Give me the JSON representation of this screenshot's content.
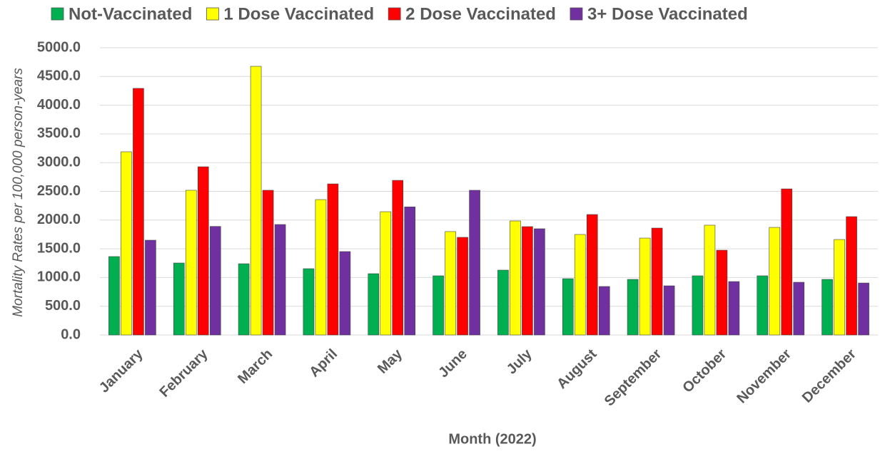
{
  "chart_data": {
    "type": "bar",
    "x_label": "Month (2022)",
    "y_label": "Mortality Rates per 100,000 person-years",
    "categories": [
      "January",
      "February",
      "March",
      "April",
      "May",
      "June",
      "July",
      "August",
      "September",
      "October",
      "November",
      "December"
    ],
    "series": [
      {
        "name": "Not-Vaccinated",
        "color": "#00b050",
        "values": [
          1365,
          1253,
          1240,
          1154,
          1067,
          1030,
          1129,
          980,
          968,
          1030,
          1030,
          968
        ]
      },
      {
        "name": "1 Dose Vaccinated",
        "color": "#ffff00",
        "values": [
          3189,
          2519,
          4677,
          2357,
          2146,
          1800,
          1985,
          1750,
          1687,
          1911,
          1873,
          1662
        ]
      },
      {
        "name": "2 Dose Vaccinated",
        "color": "#ff0000",
        "values": [
          4293,
          2928,
          2519,
          2630,
          2692,
          1700,
          1886,
          2097,
          1861,
          1476,
          2543,
          2060
        ]
      },
      {
        "name": "3+ Dose Vaccinated",
        "color": "#7030a0",
        "values": [
          1650,
          1890,
          1923,
          1452,
          2230,
          2519,
          1849,
          844,
          856,
          930,
          918,
          905
        ]
      }
    ],
    "ylim": [
      0,
      5000
    ],
    "yticks": [
      {
        "value": 0,
        "label": "0.0"
      },
      {
        "value": 500,
        "label": "500.0"
      },
      {
        "value": 1000,
        "label": "1000.0"
      },
      {
        "value": 1500,
        "label": "1500.0"
      },
      {
        "value": 2000,
        "label": "2000.0"
      },
      {
        "value": 2500,
        "label": "2500.0"
      },
      {
        "value": 3000,
        "label": "3000.0"
      },
      {
        "value": 3500,
        "label": "3500.0"
      },
      {
        "value": 4000,
        "label": "4000.0"
      },
      {
        "value": 4500,
        "label": "4500.0"
      },
      {
        "value": 5000,
        "label": "5000.0"
      }
    ],
    "grid": true,
    "legend": "top"
  }
}
